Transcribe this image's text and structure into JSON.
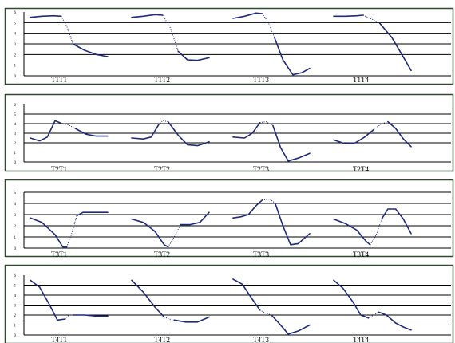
{
  "chart_data": [
    {
      "type": "line",
      "ylim": [
        0,
        6
      ],
      "y_ticks": [
        "0",
        "1",
        "2",
        "3",
        "4",
        "5",
        "6"
      ],
      "gridlines": [
        2,
        3,
        4,
        5
      ],
      "colors": {
        "line": "#1f2a7a",
        "grid": "#000000",
        "frame": "#2f4a2f"
      },
      "groups": [
        {
          "label": "T1T1",
          "solid": [
            [
              0,
              5.5
            ],
            [
              0.15,
              5.6
            ],
            [
              0.3,
              5.65
            ],
            [
              0.4,
              5.6
            ]
          ],
          "dotted": [
            [
              0.4,
              5.6
            ],
            [
              0.48,
              4.5
            ],
            [
              0.55,
              3.0
            ]
          ],
          "solid2": [
            [
              0.55,
              3.0
            ],
            [
              0.7,
              2.4
            ],
            [
              0.85,
              2.0
            ],
            [
              1.0,
              1.8
            ]
          ]
        },
        {
          "label": "T1T2",
          "solid": [
            [
              0,
              5.5
            ],
            [
              0.15,
              5.6
            ],
            [
              0.3,
              5.75
            ],
            [
              0.4,
              5.7
            ]
          ],
          "dotted": [
            [
              0.4,
              5.7
            ],
            [
              0.5,
              4.5
            ],
            [
              0.6,
              2.3
            ]
          ],
          "solid2": [
            [
              0.6,
              2.3
            ],
            [
              0.72,
              1.5
            ],
            [
              0.85,
              1.45
            ],
            [
              1.0,
              1.7
            ]
          ]
        },
        {
          "label": "T1T3",
          "solid": [
            [
              0,
              5.4
            ],
            [
              0.15,
              5.6
            ],
            [
              0.3,
              5.9
            ],
            [
              0.38,
              5.85
            ]
          ],
          "dotted": [
            [
              0.38,
              5.85
            ],
            [
              0.46,
              5.0
            ],
            [
              0.54,
              3.6
            ]
          ],
          "solid2": [
            [
              0.54,
              3.6
            ],
            [
              0.65,
              1.5
            ],
            [
              0.78,
              0.1
            ],
            [
              0.9,
              0.3
            ],
            [
              1.0,
              0.7
            ]
          ]
        },
        {
          "label": "T1T4",
          "solid": [
            [
              0,
              5.6
            ],
            [
              0.15,
              5.6
            ],
            [
              0.3,
              5.65
            ],
            [
              0.38,
              5.7
            ]
          ],
          "dotted": [
            [
              0.38,
              5.7
            ],
            [
              0.5,
              5.3
            ],
            [
              0.6,
              4.9
            ]
          ],
          "solid2": [
            [
              0.6,
              4.9
            ],
            [
              0.75,
              3.6
            ],
            [
              0.88,
              2.0
            ],
            [
              1.0,
              0.5
            ]
          ]
        }
      ]
    },
    {
      "type": "line",
      "ylim": [
        0,
        6
      ],
      "y_ticks": [
        "0",
        "1",
        "2",
        "3",
        "4",
        "5",
        "6"
      ],
      "gridlines": [
        2,
        3,
        4,
        5
      ],
      "colors": {
        "line": "#1f2a7a",
        "grid": "#000000",
        "frame": "#2f4a2f"
      },
      "groups": [
        {
          "label": "T2T1",
          "solid": [
            [
              0,
              2.5
            ],
            [
              0.12,
              2.2
            ],
            [
              0.22,
              2.6
            ],
            [
              0.32,
              4.3
            ],
            [
              0.38,
              4.1
            ]
          ],
          "dotted": [
            [
              0.38,
              4.1
            ],
            [
              0.48,
              3.9
            ],
            [
              0.58,
              3.5
            ]
          ],
          "solid2": [
            [
              0.58,
              3.5
            ],
            [
              0.72,
              2.9
            ],
            [
              0.85,
              2.7
            ],
            [
              1.0,
              2.7
            ]
          ]
        },
        {
          "label": "T2T2",
          "solid": [
            [
              0,
              2.5
            ],
            [
              0.15,
              2.4
            ],
            [
              0.25,
              2.6
            ],
            [
              0.35,
              3.9
            ]
          ],
          "dotted": [
            [
              0.35,
              3.9
            ],
            [
              0.4,
              4.3
            ],
            [
              0.47,
              4.2
            ]
          ],
          "solid2": [
            [
              0.47,
              4.2
            ],
            [
              0.6,
              2.8
            ],
            [
              0.72,
              1.8
            ],
            [
              0.85,
              1.7
            ],
            [
              1.0,
              2.1
            ]
          ]
        },
        {
          "label": "T2T3",
          "solid": [
            [
              0,
              2.6
            ],
            [
              0.15,
              2.5
            ],
            [
              0.25,
              3.0
            ],
            [
              0.35,
              4.1
            ]
          ],
          "dotted": [
            [
              0.35,
              4.1
            ],
            [
              0.43,
              4.2
            ],
            [
              0.52,
              3.8
            ]
          ],
          "solid2": [
            [
              0.52,
              3.8
            ],
            [
              0.62,
              1.5
            ],
            [
              0.72,
              0.1
            ],
            [
              0.85,
              0.4
            ],
            [
              1.0,
              0.9
            ]
          ]
        },
        {
          "label": "T2T4",
          "solid": [
            [
              0,
              2.3
            ],
            [
              0.15,
              1.9
            ],
            [
              0.28,
              2.0
            ],
            [
              0.4,
              2.6
            ],
            [
              0.52,
              3.4
            ]
          ],
          "dotted": [
            [
              0.52,
              3.4
            ],
            [
              0.62,
              4.0
            ],
            [
              0.7,
              4.2
            ]
          ],
          "solid2": [
            [
              0.7,
              4.2
            ],
            [
              0.8,
              3.5
            ],
            [
              0.9,
              2.4
            ],
            [
              1.0,
              1.6
            ]
          ]
        }
      ]
    },
    {
      "type": "line",
      "ylim": [
        0,
        5
      ],
      "y_ticks": [
        "0",
        "1",
        "2",
        "3",
        "4",
        "5"
      ],
      "gridlines": [
        1,
        2,
        3,
        4,
        5
      ],
      "colors": {
        "line": "#1f2a7a",
        "grid": "#000000",
        "frame": "#2f4a2f"
      },
      "groups": [
        {
          "label": "T3T1",
          "solid": [
            [
              0,
              2.7
            ],
            [
              0.15,
              2.3
            ],
            [
              0.32,
              1.2
            ],
            [
              0.42,
              0.1
            ],
            [
              0.47,
              0.1
            ]
          ],
          "dotted": [
            [
              0.47,
              0.1
            ],
            [
              0.53,
              1.2
            ],
            [
              0.6,
              2.9
            ]
          ],
          "solid2": [
            [
              0.6,
              2.9
            ],
            [
              0.68,
              3.2
            ],
            [
              0.85,
              3.2
            ],
            [
              1.0,
              3.2
            ]
          ]
        },
        {
          "label": "T3T2",
          "solid": [
            [
              0,
              2.6
            ],
            [
              0.15,
              2.3
            ],
            [
              0.3,
              1.5
            ],
            [
              0.42,
              0.3
            ],
            [
              0.47,
              0.1
            ]
          ],
          "dotted": [
            [
              0.47,
              0.1
            ],
            [
              0.55,
              1.0
            ],
            [
              0.63,
              2.1
            ]
          ],
          "solid2": [
            [
              0.63,
              2.1
            ],
            [
              0.75,
              2.1
            ],
            [
              0.88,
              2.3
            ],
            [
              1.0,
              3.2
            ]
          ]
        },
        {
          "label": "T3T3",
          "solid": [
            [
              0,
              2.7
            ],
            [
              0.1,
              2.8
            ],
            [
              0.2,
              3.0
            ],
            [
              0.3,
              3.8
            ],
            [
              0.38,
              4.3
            ]
          ],
          "dotted": [
            [
              0.38,
              4.3
            ],
            [
              0.48,
              4.4
            ],
            [
              0.55,
              4.0
            ]
          ],
          "solid2": [
            [
              0.55,
              4.0
            ],
            [
              0.65,
              2.0
            ],
            [
              0.75,
              0.3
            ],
            [
              0.85,
              0.4
            ],
            [
              1.0,
              1.3
            ]
          ]
        },
        {
          "label": "T3T4",
          "solid": [
            [
              0,
              2.6
            ],
            [
              0.15,
              2.2
            ],
            [
              0.3,
              1.6
            ],
            [
              0.42,
              0.6
            ],
            [
              0.47,
              0.3
            ]
          ],
          "dotted": [
            [
              0.47,
              0.3
            ],
            [
              0.55,
              1.2
            ],
            [
              0.62,
              2.6
            ]
          ],
          "solid2": [
            [
              0.62,
              2.6
            ],
            [
              0.7,
              3.5
            ],
            [
              0.8,
              3.5
            ],
            [
              0.9,
              2.6
            ],
            [
              1.0,
              1.3
            ]
          ]
        }
      ]
    },
    {
      "type": "line",
      "ylim": [
        0,
        6
      ],
      "y_ticks": [
        "0",
        "1",
        "2",
        "3",
        "4",
        "5",
        "6"
      ],
      "gridlines": [
        1,
        2,
        3,
        4,
        5
      ],
      "colors": {
        "line": "#1f2a7a",
        "grid": "#000000",
        "frame": "#2f4a2f"
      },
      "groups": [
        {
          "label": "T4T1",
          "solid": [
            [
              0,
              5.5
            ],
            [
              0.12,
              4.8
            ],
            [
              0.25,
              3.0
            ],
            [
              0.35,
              1.5
            ],
            [
              0.45,
              1.6
            ]
          ],
          "dotted": [
            [
              0.45,
              1.6
            ],
            [
              0.5,
              2.0
            ],
            [
              0.55,
              2.0
            ]
          ],
          "solid2": [
            [
              0.55,
              2.0
            ],
            [
              0.7,
              2.0
            ],
            [
              0.85,
              1.9
            ],
            [
              1.0,
              1.9
            ]
          ]
        },
        {
          "label": "T4T2",
          "solid": [
            [
              0,
              5.5
            ],
            [
              0.15,
              4.3
            ],
            [
              0.3,
              2.8
            ],
            [
              0.42,
              1.8
            ]
          ],
          "dotted": [
            [
              0.42,
              1.8
            ],
            [
              0.48,
              1.6
            ],
            [
              0.55,
              1.5
            ]
          ],
          "solid2": [
            [
              0.55,
              1.5
            ],
            [
              0.7,
              1.3
            ],
            [
              0.85,
              1.3
            ],
            [
              1.0,
              1.8
            ]
          ]
        },
        {
          "label": "T4T3",
          "solid": [
            [
              0,
              5.6
            ],
            [
              0.12,
              5.1
            ],
            [
              0.25,
              3.6
            ],
            [
              0.35,
              2.5
            ]
          ],
          "dotted": [
            [
              0.35,
              2.5
            ],
            [
              0.42,
              2.2
            ],
            [
              0.5,
              2.0
            ]
          ],
          "solid2": [
            [
              0.5,
              2.0
            ],
            [
              0.62,
              1.0
            ],
            [
              0.72,
              0.1
            ],
            [
              0.85,
              0.4
            ],
            [
              1.0,
              1.0
            ]
          ]
        },
        {
          "label": "T4T4",
          "solid": [
            [
              0,
              5.5
            ],
            [
              0.12,
              4.7
            ],
            [
              0.25,
              3.3
            ],
            [
              0.35,
              2.0
            ],
            [
              0.45,
              1.7
            ]
          ],
          "dotted": [
            [
              0.45,
              1.7
            ],
            [
              0.52,
              2.0
            ],
            [
              0.58,
              2.3
            ]
          ],
          "solid2": [
            [
              0.58,
              2.3
            ],
            [
              0.68,
              2.0
            ],
            [
              0.8,
              1.2
            ],
            [
              0.9,
              0.8
            ],
            [
              1.0,
              0.5
            ]
          ]
        }
      ]
    }
  ]
}
